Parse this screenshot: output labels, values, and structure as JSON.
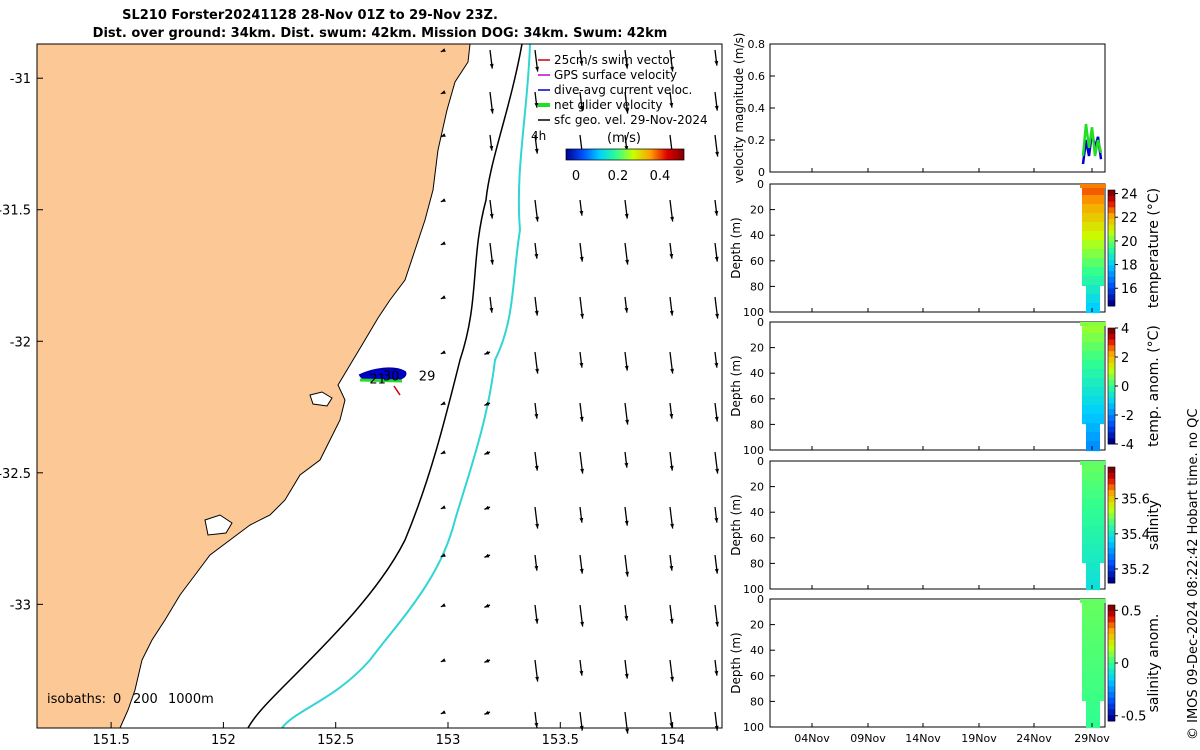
{
  "title": {
    "line1": "SL210 Forster20241128 28-Nov 01Z to 29-Nov 23Z.",
    "line2": "Dist. over ground: 34km. Dist. swum: 42km. Mission DOG: 34km. Swum: 42km"
  },
  "credit": "© IMOS 09-Dec-2024 08:22:42 Hobart time. no QC",
  "colors": {
    "land": "#fcc996",
    "arrow": "#000000",
    "shelf200": "#000000",
    "isobath1000": "#33d4d4",
    "track": "#0000cc",
    "netvel": "#22dd22"
  },
  "chart_data": [
    {
      "type": "map",
      "name": "glider-track-map",
      "x_ticks": [
        "151.5",
        "152",
        "152.5",
        "153",
        "153.5",
        "154"
      ],
      "y_ticks": [
        "-31",
        "-31.5",
        "-32",
        "-32.5",
        "-33"
      ],
      "xlim": [
        151.17,
        154.22
      ],
      "ylim": [
        -33.47,
        -30.87
      ],
      "legend": [
        {
          "label": "25cm/s swim vector",
          "color": "#cc0000"
        },
        {
          "label": "GPS surface velocity",
          "color": "#cc00cc"
        },
        {
          "label": "dive-avg current veloc.",
          "color": "#0000cc"
        },
        {
          "label": "net glider velocity",
          "color": "#22dd22"
        },
        {
          "label": "sfc geo. vel. 29-Nov-2024",
          "color": "#000000"
        }
      ],
      "legend_suffix": "4h",
      "colorbar": {
        "label": "(m/s)",
        "ticks": [
          "0",
          "0.2",
          "0.4"
        ]
      },
      "track_labels": [
        {
          "text": "30",
          "lon": 152.71,
          "lat": -32.15
        },
        {
          "text": "29",
          "lon": 152.87,
          "lat": -32.15
        },
        {
          "text": "21",
          "lon": 152.65,
          "lat": -32.16
        }
      ],
      "isobath_legend": {
        "prefix": "isobaths:",
        "values": [
          "0",
          "200",
          "1000m"
        ]
      }
    },
    {
      "type": "line",
      "name": "velocity-magnitude-panel",
      "ylabel": "velocity magnitude (m/s)",
      "y_ticks": [
        "0",
        "0.2",
        "0.4",
        "0.6",
        "0.8"
      ],
      "ylim": [
        0,
        0.8
      ],
      "series": [
        {
          "name": "dive-avg current",
          "color": "#0000cc",
          "values": [
            0.05,
            0.2,
            0.1,
            0.25,
            0.15,
            0.22,
            0.08
          ]
        },
        {
          "name": "net glider",
          "color": "#22dd22",
          "values": [
            0.1,
            0.3,
            0.15,
            0.28,
            0.1,
            0.2,
            0.12
          ]
        }
      ]
    },
    {
      "type": "heatmap",
      "name": "temperature-panel",
      "ylabel": "Depth (m)",
      "y_ticks": [
        "0",
        "20",
        "40",
        "60",
        "80",
        "100"
      ],
      "cbar_label": "temperature (°C)",
      "cbar_ticks": [
        "16",
        "18",
        "20",
        "22",
        "24"
      ],
      "cbar_range": [
        14.5,
        24.3
      ]
    },
    {
      "type": "heatmap",
      "name": "temp-anomaly-panel",
      "ylabel": "Depth (m)",
      "y_ticks": [
        "0",
        "20",
        "40",
        "60",
        "80",
        "100"
      ],
      "cbar_label": "temp. anom. (°C)",
      "cbar_ticks": [
        "-4",
        "-2",
        "0",
        "2",
        "4"
      ],
      "cbar_range": [
        -4,
        4
      ]
    },
    {
      "type": "heatmap",
      "name": "salinity-panel",
      "ylabel": "Depth (m)",
      "y_ticks": [
        "0",
        "20",
        "40",
        "60",
        "80",
        "100"
      ],
      "cbar_label": "salinity",
      "cbar_ticks": [
        "35.2",
        "35.4",
        "35.6"
      ],
      "cbar_range": [
        35.12,
        35.78
      ]
    },
    {
      "type": "heatmap",
      "name": "salinity-anomaly-panel",
      "ylabel": "Depth (m)",
      "y_ticks": [
        "0",
        "20",
        "40",
        "60",
        "80",
        "100"
      ],
      "cbar_label": "salinity anom.",
      "cbar_ticks": [
        "-0.5",
        "0",
        "0.5"
      ],
      "cbar_range": [
        -0.55,
        0.55
      ]
    }
  ],
  "time_axis": {
    "ticks": [
      "04Nov",
      "09Nov",
      "14Nov",
      "19Nov",
      "24Nov",
      "29Nov"
    ]
  }
}
